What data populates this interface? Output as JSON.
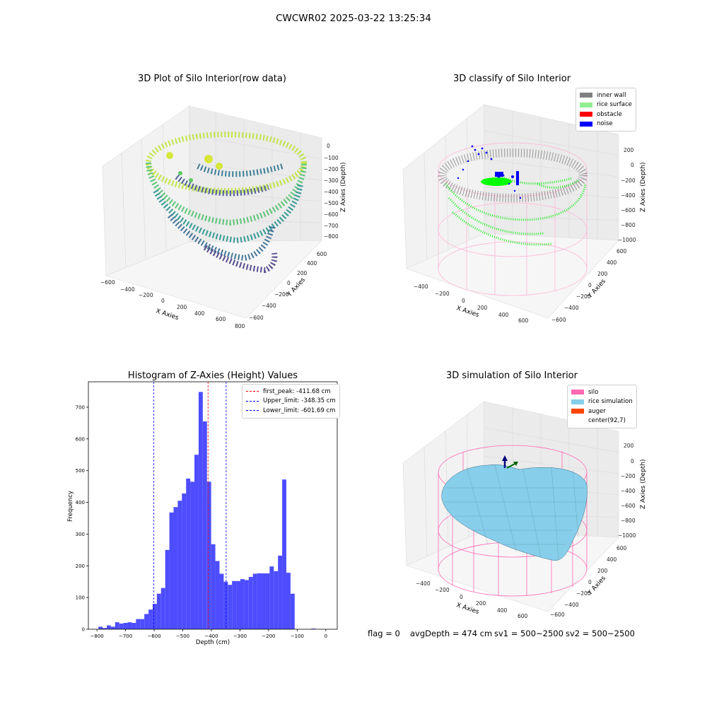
{
  "figure": {
    "suptitle": "CWCWR02 2025-03-22 13:25:34"
  },
  "panels": {
    "raw": {
      "title": "3D Plot of Silo Interior(row data)",
      "xlabel": "X Axies",
      "ylabel": "Y Axies",
      "zlabel": "Z Axies (Depth)",
      "xticks": [
        "−600",
        "−400",
        "−200",
        "0",
        "200",
        "400",
        "600",
        "800"
      ],
      "yticks": [
        "−600",
        "−400",
        "−200",
        "0",
        "200",
        "400",
        "600"
      ],
      "zticks": [
        "0",
        "−100",
        "−200",
        "−300",
        "−400",
        "−500",
        "−600",
        "−700",
        "−800"
      ]
    },
    "classify": {
      "title": "3D classify of Silo Interior",
      "xlabel": "X Axies",
      "ylabel": "Y Axies",
      "zlabel": "Z Axies (Depth)",
      "xticks": [
        "−400",
        "−200",
        "0",
        "200",
        "400",
        "600"
      ],
      "yticks": [
        "−600",
        "−400",
        "−200",
        "0",
        "200",
        "400",
        "600"
      ],
      "zticks": [
        "200",
        "0",
        "−200",
        "−400",
        "−600",
        "−800",
        "−1000"
      ],
      "legend": [
        {
          "label": "inner wall",
          "color": "#808080"
        },
        {
          "label": "rice surface",
          "color": "#90ee90"
        },
        {
          "label": "obstacle",
          "color": "#ff0000"
        },
        {
          "label": "noise",
          "color": "#0000ff"
        }
      ]
    },
    "simulation": {
      "title": "3D simulation of Silo Interior",
      "xlabel": "X Axies",
      "ylabel": "Y Axies",
      "zlabel": "Z Axies (Depth)",
      "xticks": [
        "−400",
        "−200",
        "0",
        "200",
        "400",
        "600"
      ],
      "yticks": [
        "−600",
        "−400",
        "−200",
        "0",
        "200",
        "400",
        "600"
      ],
      "zticks": [
        "200",
        "0",
        "−200",
        "−400",
        "−600",
        "−800",
        "−1000"
      ],
      "legend": [
        {
          "label": "silo",
          "color": "#ff69b4"
        },
        {
          "label": "rice simulation",
          "color": "#87ceeb"
        },
        {
          "label": "auger",
          "color": "#ff4500"
        },
        {
          "label": "center(92,7)",
          "color": ""
        }
      ],
      "info": {
        "flag": "flag = 0",
        "avg": "avgDepth = 474 cm",
        "sv1": "sv1 = 500~2500",
        "sv2": "sv2 = 500~2500"
      }
    }
  },
  "chart_data": {
    "type": "bar",
    "title": "Histogram of Z-Axies (Height) Values",
    "xlabel": "Depth (cm)",
    "ylabel": "Frequency",
    "xlim": [
      -830,
      40
    ],
    "ylim": [
      0,
      780
    ],
    "bin_width": 14.6,
    "bins_start": [
      -795,
      -780.4,
      -765.8,
      -751.2,
      -736.6,
      -722,
      -707.4,
      -692.8,
      -678.2,
      -663.6,
      -649,
      -634.4,
      -619.8,
      -605.2,
      -590.6,
      -576,
      -561.4,
      -546.8,
      -532.2,
      -517.6,
      -503,
      -488.4,
      -473.8,
      -459.2,
      -444.6,
      -430,
      -415.4,
      -400.8,
      -386.2,
      -371.6,
      -357,
      -342.4,
      -327.8,
      -313.2,
      -298.6,
      -284,
      -269.4,
      -254.8,
      -240.2,
      -225.6,
      -211,
      -196.4,
      -181.8,
      -167.2,
      -152.6,
      -138,
      -123.4,
      -108.8,
      -94.2,
      -79.6,
      -65,
      -50.4,
      -35.8,
      -21.2,
      -6.6
    ],
    "values": [
      8,
      4,
      12,
      8,
      22,
      18,
      20,
      22,
      20,
      32,
      32,
      48,
      62,
      80,
      112,
      130,
      250,
      368,
      385,
      405,
      428,
      475,
      465,
      550,
      748,
      655,
      465,
      268,
      215,
      175,
      150,
      140,
      152,
      152,
      158,
      155,
      165,
      175,
      176,
      176,
      176,
      198,
      183,
      232,
      472,
      178,
      112,
      0,
      0,
      0,
      0,
      2,
      0,
      0,
      0
    ],
    "xticks": [
      -800,
      -700,
      -600,
      -500,
      -400,
      -300,
      -200,
      -100,
      0
    ],
    "yticks": [
      0,
      100,
      200,
      300,
      400,
      500,
      600,
      700
    ],
    "vlines": [
      {
        "name": "first_peak: -411.68 cm",
        "x": -411.68,
        "color": "#ff0000"
      },
      {
        "name": "Upper_limit: -348.35 cm",
        "x": -348.35,
        "color": "#0000ff"
      },
      {
        "name": "Lower_limit: -601.69 cm",
        "x": -601.69,
        "color": "#0000ff"
      }
    ],
    "bar_color": "#4d4dff",
    "legend_position": "top-right"
  }
}
